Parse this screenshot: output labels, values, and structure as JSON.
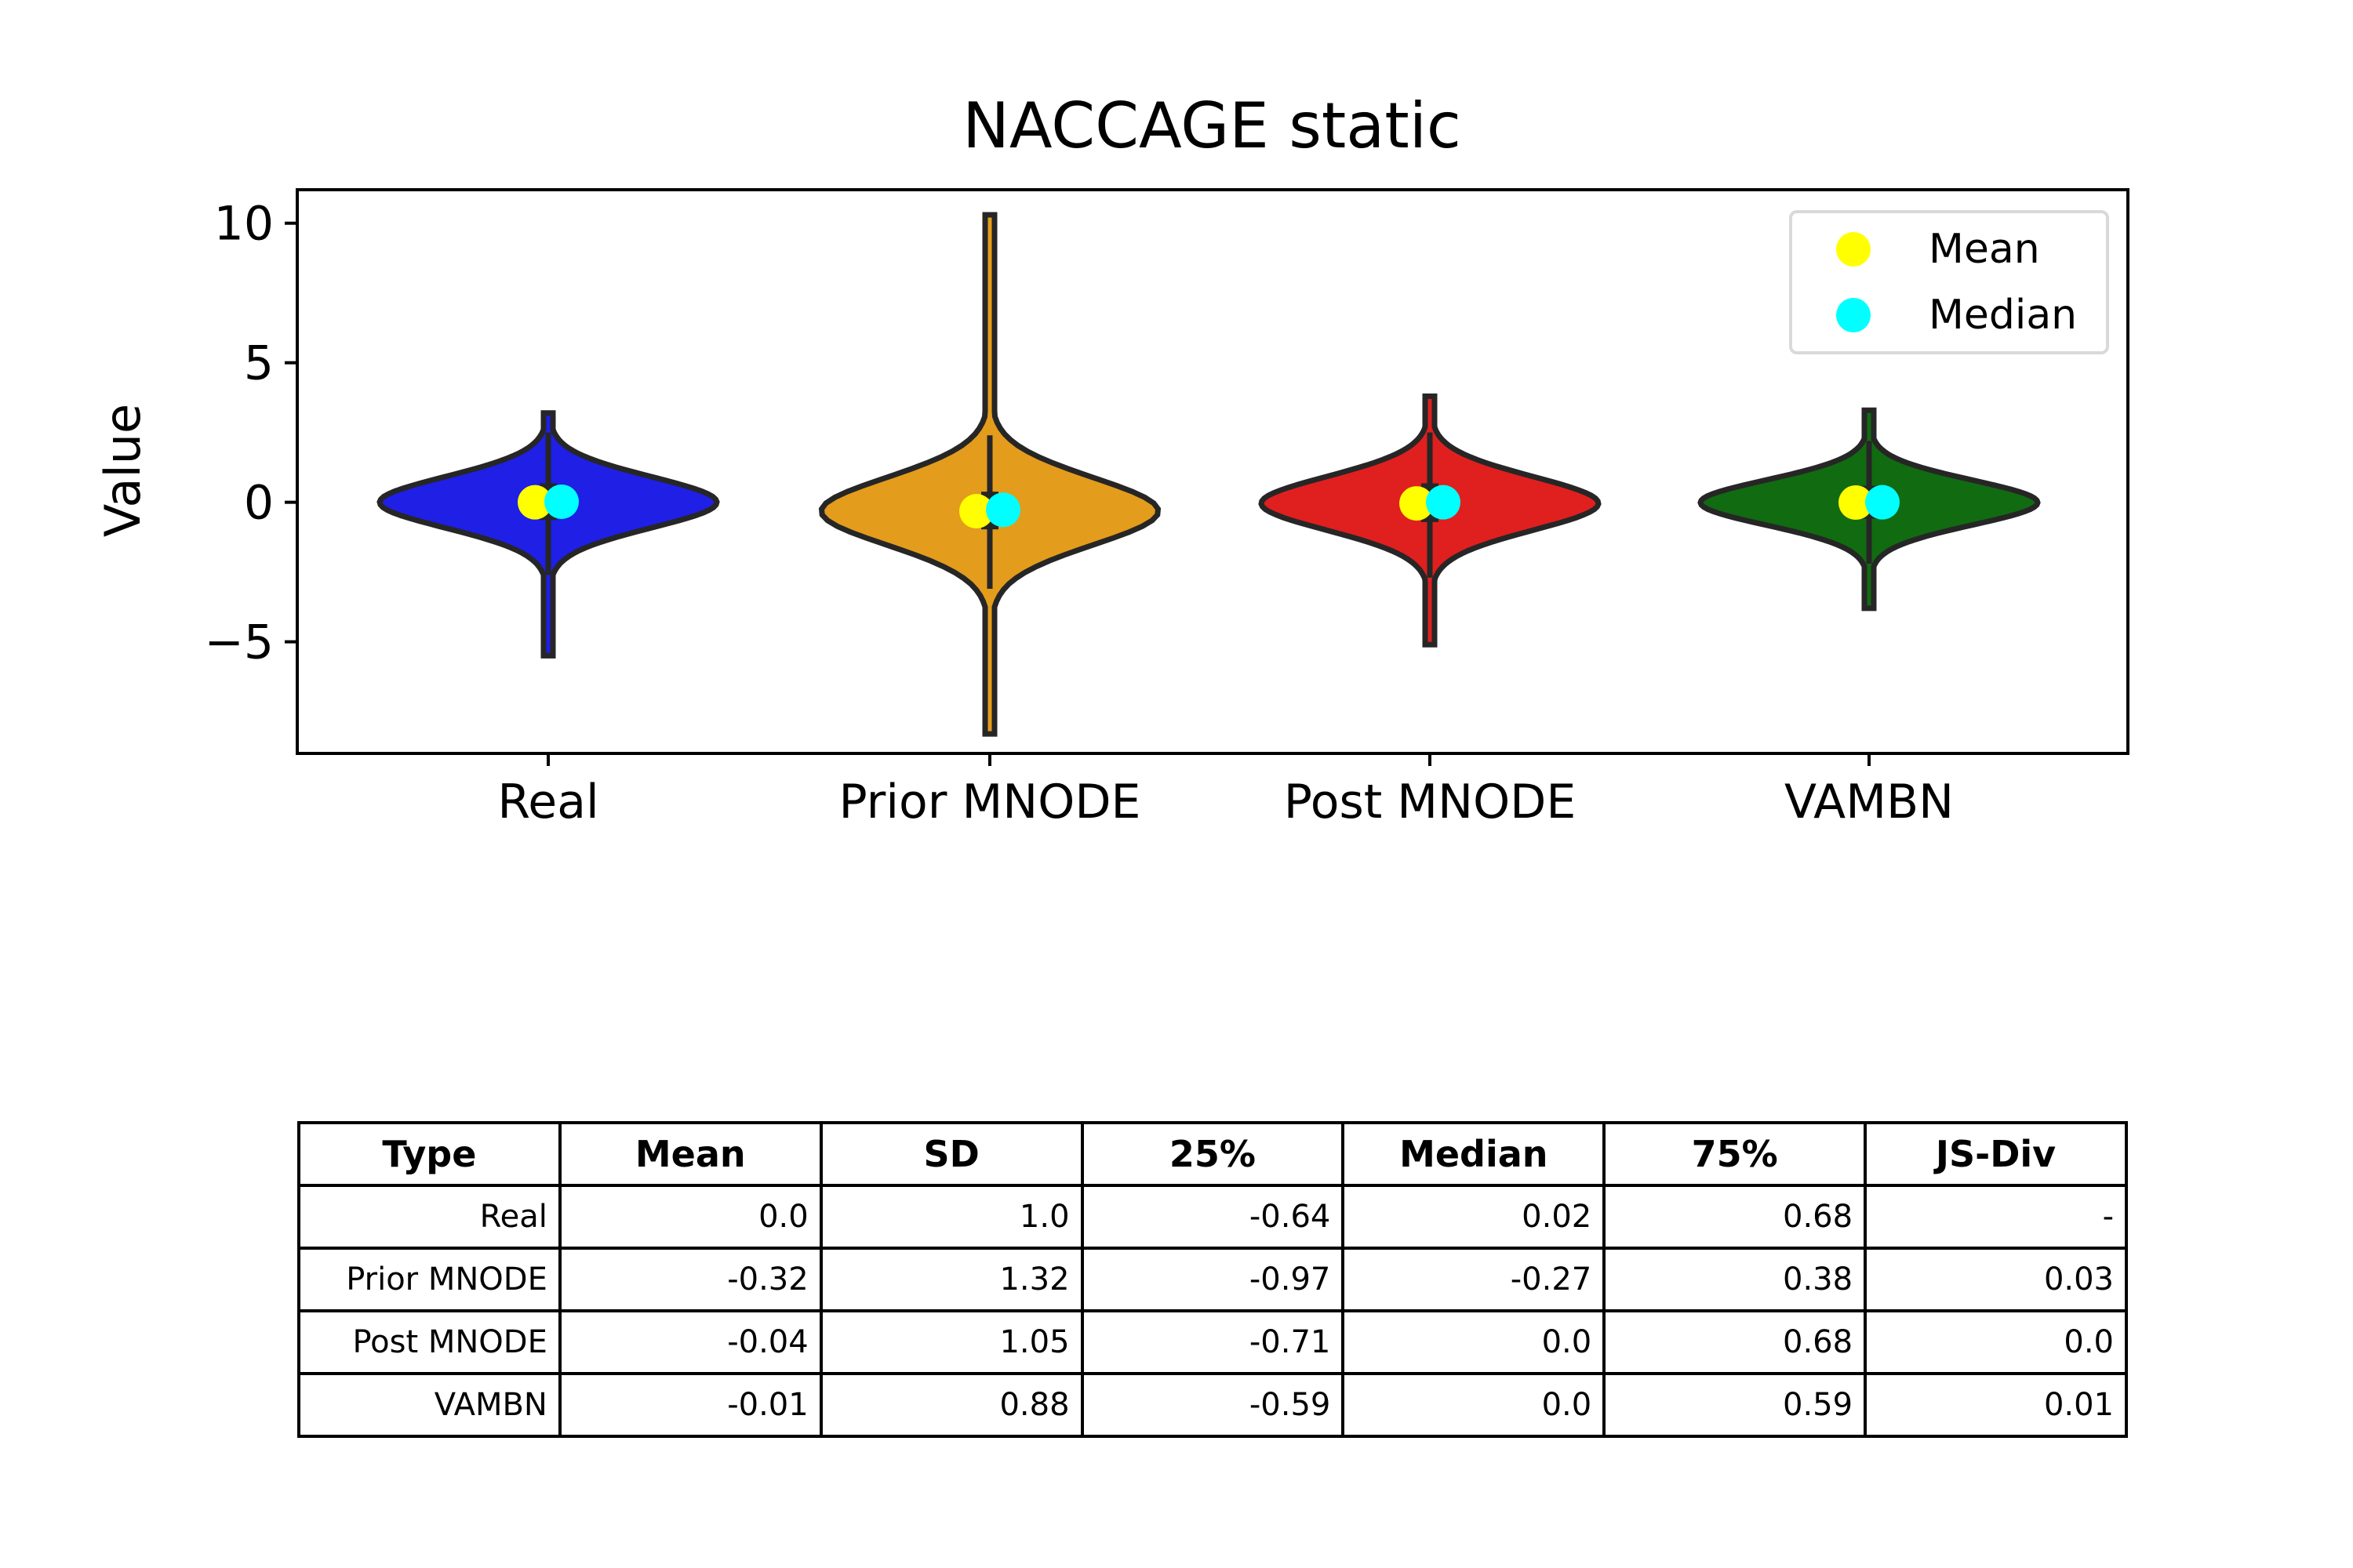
{
  "chart_data": {
    "type": "violin",
    "title": "NACCAGE static",
    "xlabel": "",
    "ylabel": "Value",
    "ylim": [
      -9,
      11.2
    ],
    "yticks": [
      10,
      5,
      0,
      -5
    ],
    "ytick_labels": [
      "10",
      "5",
      "0",
      "−5"
    ],
    "categories": [
      "Real",
      "Prior MNODE",
      "Post MNODE",
      "VAMBN"
    ],
    "colors": [
      "#1f1fe6",
      "#e39c1c",
      "#e01f1f",
      "#116b11"
    ],
    "series": [
      {
        "name": "Mean",
        "color": "#ffff00",
        "values": [
          0.0,
          -0.32,
          -0.04,
          -0.01
        ]
      },
      {
        "name": "Median",
        "color": "#00ffff",
        "values": [
          0.02,
          -0.27,
          0.0,
          0.0
        ]
      }
    ],
    "quartiles": [
      [
        -0.64,
        0.68
      ],
      [
        -0.97,
        0.38
      ],
      [
        -0.71,
        0.68
      ],
      [
        -0.59,
        0.59
      ]
    ],
    "whiskers": [
      [
        -2.6,
        2.5
      ],
      [
        -3.1,
        2.4
      ],
      [
        -2.7,
        2.5
      ],
      [
        -2.2,
        2.2
      ]
    ],
    "ranges": [
      [
        -5.5,
        3.2
      ],
      [
        -8.3,
        10.3
      ],
      [
        -5.1,
        3.8
      ],
      [
        -3.8,
        3.3
      ]
    ],
    "sd": [
      1.0,
      1.32,
      1.05,
      0.88
    ],
    "legend": {
      "position": "top-right",
      "entries": [
        "Mean",
        "Median"
      ]
    },
    "grid": false
  },
  "table": {
    "headers": [
      "Type",
      "Mean",
      "SD",
      "25%",
      "Median",
      "75%",
      "JS-Div"
    ],
    "rows": [
      [
        "Real",
        "0.0",
        "1.0",
        "-0.64",
        "0.02",
        "0.68",
        "-"
      ],
      [
        "Prior MNODE",
        "-0.32",
        "1.32",
        "-0.97",
        "-0.27",
        "0.38",
        "0.03"
      ],
      [
        "Post MNODE",
        "-0.04",
        "1.05",
        "-0.71",
        "0.0",
        "0.68",
        "0.0"
      ],
      [
        "VAMBN",
        "-0.01",
        "0.88",
        "-0.59",
        "0.0",
        "0.59",
        "0.01"
      ]
    ]
  }
}
